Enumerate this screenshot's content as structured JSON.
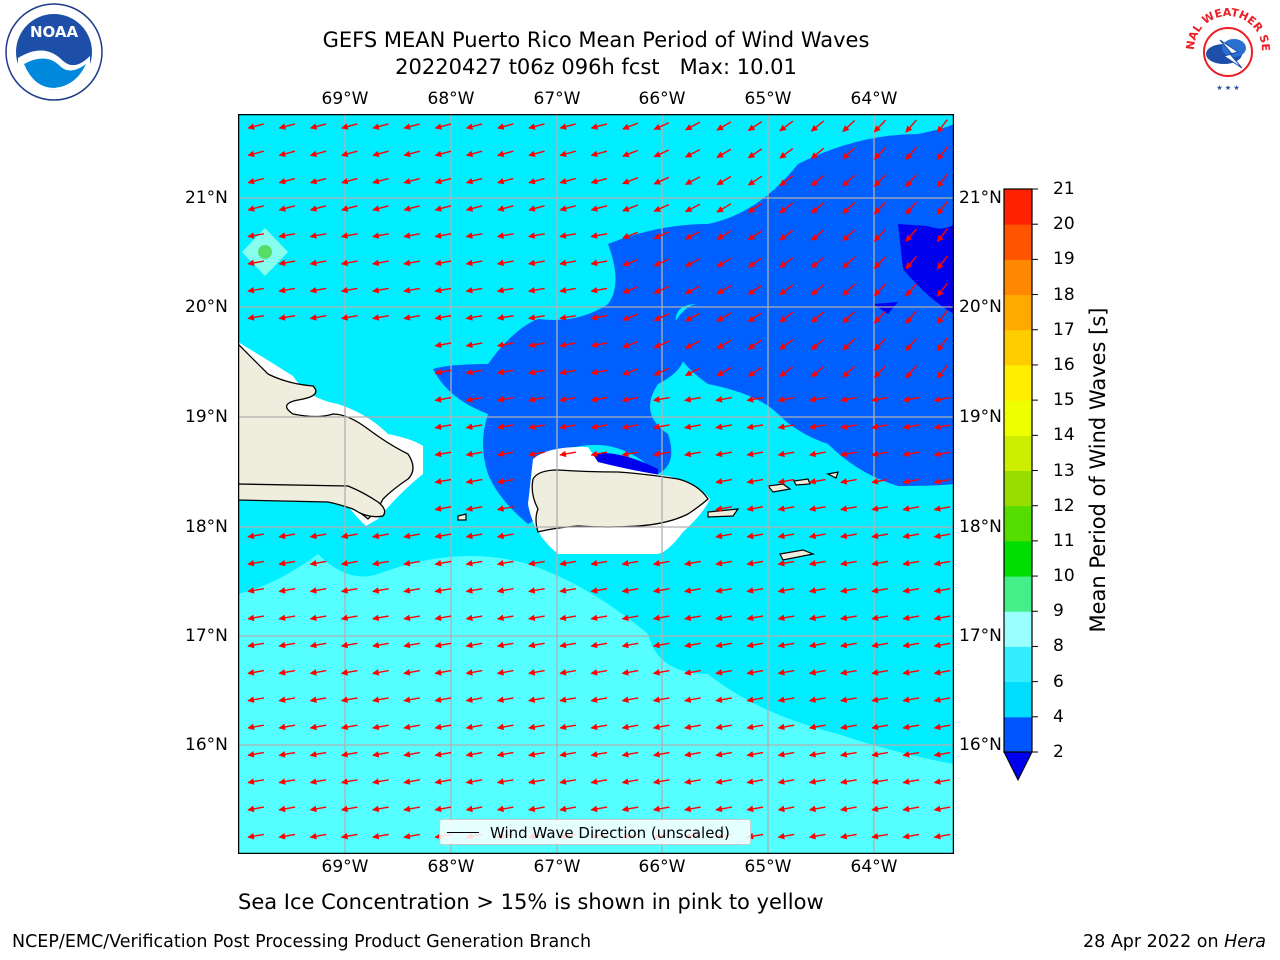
{
  "header": {
    "title_line1": "GEFS MEAN Puerto Rico Mean Period of Wind Waves",
    "title_line2": "20220427 t06z 096h fcst   Max: 10.01"
  },
  "map": {
    "lon_ticks": [
      "69°W",
      "68°W",
      "67°W",
      "66°W",
      "65°W",
      "64°W"
    ],
    "lat_ticks": [
      "21°N",
      "20°N",
      "19°N",
      "18°N",
      "17°N",
      "16°N"
    ],
    "lon_range": [
      -70.0,
      -63.25
    ],
    "lat_range": [
      15.0,
      21.75
    ],
    "gridlines": true,
    "land_color": "#efedde",
    "vector_color": "#ff0000"
  },
  "colorbar": {
    "label": "Mean Period of Wind Waves [s]",
    "ticks": [
      "2",
      "4",
      "6",
      "8",
      "9",
      "10",
      "11",
      "12",
      "13",
      "14",
      "15",
      "16",
      "17",
      "18",
      "19",
      "20",
      "21"
    ],
    "colors": [
      "#0055ff",
      "#00ddff",
      "#33eeff",
      "#99ffff",
      "#44ee88",
      "#00dd00",
      "#55dd00",
      "#99dd00",
      "#ccee00",
      "#eeff00",
      "#ffee00",
      "#ffcc00",
      "#ffaa00",
      "#ff8800",
      "#ff5500",
      "#ff2200"
    ],
    "underflow_color": "#0000ee"
  },
  "legend": {
    "entry": "Wind Wave Direction (unscaled)"
  },
  "subtitle": "Sea Ice Concentration > 15% is shown in pink to yellow",
  "footer": {
    "left": "NCEP/EMC/Verification Post Processing Product Generation Branch",
    "date": "28 Apr 2022 on ",
    "machine": "Hera"
  },
  "logos": {
    "noaa": "noaa-logo",
    "nws": "national-weather-service-logo",
    "noaa_text": "NOAA",
    "nws_text": "NATIONAL WEATHER SERVICE"
  }
}
